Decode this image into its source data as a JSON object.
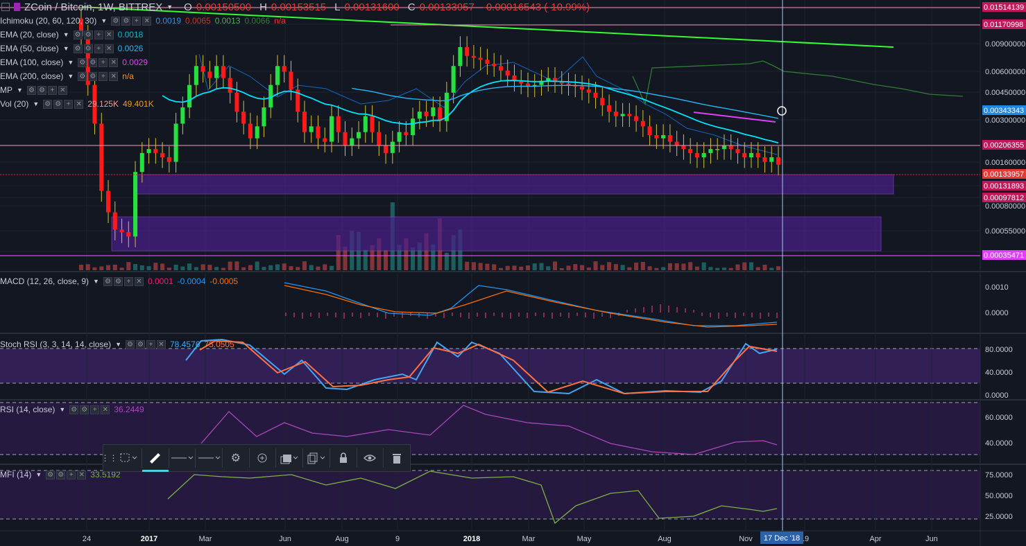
{
  "header": {
    "symbol": "ZCoin / Bitcoin, 1W, BITTREX",
    "o_label": "O",
    "o_value": "0.00150500",
    "h_label": "H",
    "h_value": "0.00153515",
    "l_label": "L",
    "l_value": "0.00131600",
    "c_label": "C",
    "c_value": "0.00133957",
    "change": "-0.00016543 (-10.99%)"
  },
  "indicators": [
    {
      "name": "Ichimoku (20, 60, 120, 30)",
      "values": [
        {
          "v": "0.0019",
          "color": "#2196f3"
        },
        {
          "v": "0.0065",
          "color": "#c0392b"
        },
        {
          "v": "0.0013",
          "color": "#4caf50"
        },
        {
          "v": "0.0066",
          "color": "#2e7d32"
        },
        {
          "v": "n/a",
          "color": "#e53935"
        }
      ]
    },
    {
      "name": "EMA (20, close)",
      "values": [
        {
          "v": "0.0018",
          "color": "#00bcd4"
        }
      ]
    },
    {
      "name": "EMA (50, close)",
      "values": [
        {
          "v": "0.0026",
          "color": "#29b6f6"
        }
      ]
    },
    {
      "name": "EMA (100, close)",
      "values": [
        {
          "v": "0.0029",
          "color": "#e040fb"
        }
      ]
    },
    {
      "name": "EMA (200, close)",
      "values": [
        {
          "v": "n/a",
          "color": "#ff9800"
        }
      ]
    },
    {
      "name": "MP",
      "values": []
    },
    {
      "name": "Vol (20)",
      "values": [
        {
          "v": "29.125K",
          "color": "#ef9a9a"
        },
        {
          "v": "49.401K",
          "color": "#ff9800"
        }
      ]
    }
  ],
  "panes": {
    "macd": {
      "name": "MACD (12, 26, close, 9)",
      "values": [
        {
          "v": "0.0001",
          "color": "#e91e63"
        },
        {
          "v": "-0.0004",
          "color": "#2196f3"
        },
        {
          "v": "-0.0005",
          "color": "#ff6d00"
        }
      ]
    },
    "stoch": {
      "name": "Stoch RSI (3, 3, 14, 14, close)",
      "values": [
        {
          "v": "78.4576",
          "color": "#42a5f5"
        },
        {
          "v": "75.0505",
          "color": "#ff7043"
        }
      ]
    },
    "rsi": {
      "name": "RSI (14, close)",
      "values": [
        {
          "v": "36.2449",
          "color": "#ab47bc"
        }
      ]
    },
    "mfi": {
      "name": "MFI (14)",
      "values": [
        {
          "v": "33.5192",
          "color": "#7cb342"
        }
      ]
    }
  },
  "price_axis": {
    "ticks": [
      "0.00900000",
      "0.00600000",
      "0.00450000",
      "0.00300000",
      "0.00160000",
      "0.00080000",
      "0.00055000"
    ],
    "badges": [
      {
        "label": "0.01514139",
        "bg": "#c2185b"
      },
      {
        "label": "0.01170998",
        "bg": "#c2185b"
      },
      {
        "label": "0.00343343",
        "bg": "#1e88e5"
      },
      {
        "label": "0.00206355",
        "bg": "#c2185b"
      },
      {
        "label": "0.00133957",
        "bg": "#e53935"
      },
      {
        "label": "0.00131893",
        "bg": "#c2185b"
      },
      {
        "label": "0.00097812",
        "bg": "#c2185b"
      },
      {
        "label": "0.00035471",
        "bg": "#e040fb"
      }
    ]
  },
  "pane_axes": {
    "macd": [
      "0.0010",
      "0.0000"
    ],
    "stoch": [
      "80.0000",
      "40.0000",
      "0.0000"
    ],
    "rsi": [
      "60.0000",
      "40.0000"
    ],
    "mfi": [
      "75.0000",
      "50.0000",
      "25.0000"
    ]
  },
  "time_axis": {
    "labels": [
      "24",
      "2017",
      "Mar",
      "Jun",
      "Aug",
      "9",
      "2018",
      "Mar",
      "May",
      "Aug",
      "Nov",
      "19",
      "Apr",
      "Jun"
    ],
    "cursor_label": "17 Dec '18"
  },
  "toolbar": {
    "items": [
      "drag-handle",
      "select-icon",
      "pen-icon",
      "line-style",
      "line-width",
      "settings-icon",
      "clone-icon",
      "layers-icon",
      "copy-icon",
      "lock-icon",
      "eye-icon",
      "trash-icon"
    ]
  },
  "chart_data": {
    "type": "candlestick",
    "timeframe": "1W",
    "price_scale": "log",
    "series_note": "approx weekly closes, Nov 2016 – Dec 2018",
    "closes": [
      0.0095,
      0.0045,
      0.0025,
      0.0009,
      0.00065,
      0.0005,
      0.00048,
      0.00045,
      0.0012,
      0.0016,
      0.0017,
      0.0016,
      0.0015,
      0.0014,
      0.0025,
      0.0032,
      0.0045,
      0.006,
      0.0055,
      0.005,
      0.006,
      0.005,
      0.004,
      0.003,
      0.0025,
      0.002,
      0.0024,
      0.0032,
      0.0045,
      0.006,
      0.0055,
      0.0042,
      0.003,
      0.0022,
      0.0024,
      0.002,
      0.0019,
      0.0028,
      0.0022,
      0.0018,
      0.002,
      0.0022,
      0.0028,
      0.0022,
      0.0018,
      0.0016,
      0.0019,
      0.0022,
      0.0021,
      0.0027,
      0.003,
      0.0028,
      0.0032,
      0.0026,
      0.004,
      0.006,
      0.008,
      0.007,
      0.0068,
      0.0066,
      0.0062,
      0.006,
      0.0056,
      0.0052,
      0.0048,
      0.0046,
      0.0044,
      0.0045,
      0.0048,
      0.005,
      0.0047,
      0.0046,
      0.0045,
      0.0044,
      0.0042,
      0.004,
      0.0037,
      0.0033,
      0.003,
      0.0028,
      0.0029,
      0.0028,
      0.0026,
      0.0024,
      0.0021,
      0.002,
      0.0021,
      0.0019,
      0.0018,
      0.0017,
      0.0016,
      0.0015,
      0.0016,
      0.0017,
      0.0017,
      0.0018,
      0.0017,
      0.0016,
      0.0015,
      0.0016,
      0.0015,
      0.0014,
      0.0015,
      0.00134
    ],
    "ema20_last": 0.0018,
    "ema50_last": 0.0026,
    "ema100_last": 0.0029,
    "macd_last": [
      0.0001,
      -0.0004,
      -0.0005
    ],
    "stoch_rsi_last": [
      78.4576,
      75.0505
    ],
    "rsi_last": 36.2449,
    "mfi_last": 33.5192
  }
}
